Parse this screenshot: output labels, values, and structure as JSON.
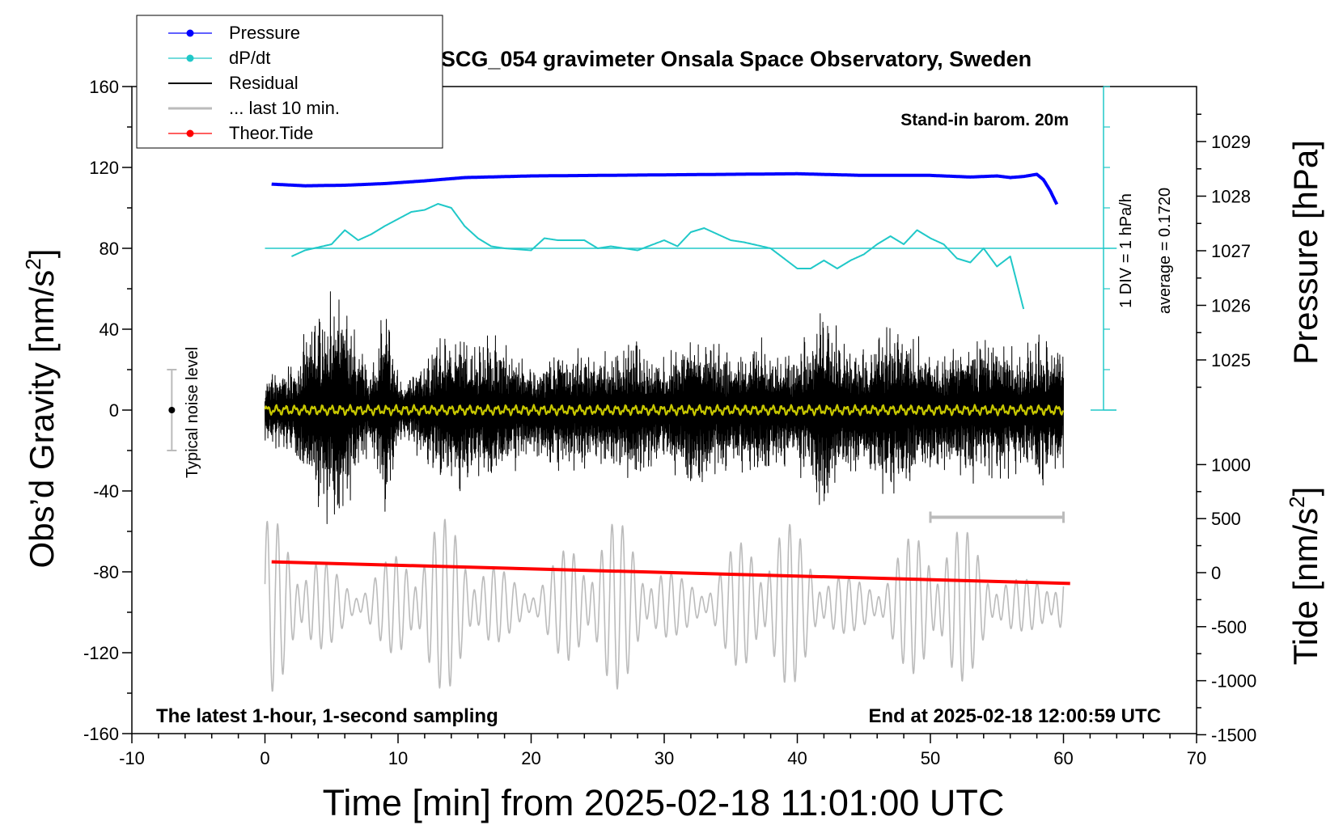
{
  "chart_data": {
    "type": "line",
    "title": "SCG_054 gravimeter Onsala Space Observatory, Sweden",
    "xlabel": "Time [min] from 2025-02-18 11:01:00 UTC",
    "xlim": [
      -10,
      70
    ],
    "xticks": [
      "-10",
      "0",
      "10",
      "20",
      "30",
      "40",
      "50",
      "60",
      "70"
    ],
    "ylabel_left": "Obs’d Gravity [nm/s",
    "ylabel_left_sup": "2",
    "ylabel_left_end": "]",
    "ylim_left": [
      -160,
      160
    ],
    "yticks_left": [
      "160",
      "120",
      "80",
      "40",
      "0",
      "-40",
      "-80",
      "-120",
      "-160"
    ],
    "ylabel_pressure": "Pressure [hPa]",
    "yticks_pressure": [
      "1029",
      "1028",
      "1027",
      "1026",
      "1025"
    ],
    "ylabel_tide": "Tide [nm/s",
    "ylabel_tide_sup": "2",
    "ylabel_tide_end": "]",
    "yticks_tide": [
      "1000",
      "500",
      "0",
      "-500",
      "-1000",
      "-1500"
    ],
    "annotations": {
      "top_right": "Stand-in barom. 20m",
      "bottom_left": "The latest 1-hour, 1-second sampling",
      "bottom_right": "End at 2025-02-18 12:00:59 UTC",
      "noise_label": "Typical noise level",
      "div_label": "1 DIV = 1 hPa/h",
      "average_label": "average = 0.1720"
    },
    "legend": [
      {
        "label": "Pressure",
        "color": "#0000ff",
        "marker": true
      },
      {
        "label": "dP/dt",
        "color": "#20c8c8",
        "marker": true
      },
      {
        "label": "Residual",
        "color": "#000000",
        "marker": false
      },
      {
        "label": "... last 10 min.",
        "color": "#bbbbbb",
        "marker": false
      },
      {
        "label": "Theor.Tide",
        "color": "#ff0000",
        "marker": true
      }
    ],
    "series": [
      {
        "name": "Pressure",
        "axis": "pressure_hpa",
        "color": "#0000ff",
        "x": [
          0.5,
          3,
          6,
          9,
          12,
          15,
          20,
          25,
          30,
          35,
          40,
          45,
          50,
          53,
          55,
          56,
          57,
          58,
          58.5,
          59,
          59.5
        ],
        "values": [
          1028.22,
          1028.19,
          1028.2,
          1028.23,
          1028.28,
          1028.34,
          1028.37,
          1028.38,
          1028.39,
          1028.4,
          1028.41,
          1028.38,
          1028.38,
          1028.35,
          1028.37,
          1028.34,
          1028.36,
          1028.4,
          1028.3,
          1028.1,
          1027.85
        ]
      },
      {
        "name": "dP/dt",
        "axis": "gravity_scale",
        "color": "#20c8c8",
        "x": [
          2,
          3,
          5,
          6,
          7,
          8,
          9,
          11,
          12,
          13,
          14,
          15,
          16,
          17,
          18,
          20,
          21,
          22,
          24,
          25,
          26,
          28,
          30,
          31,
          32,
          33,
          35,
          36,
          38,
          40,
          41,
          42,
          43,
          44,
          45,
          46,
          47,
          48,
          49,
          50,
          51,
          52,
          53,
          54,
          55,
          56,
          57
        ],
        "values": [
          76,
          79,
          82,
          89,
          84,
          87,
          91,
          98,
          99,
          102,
          100,
          91,
          85,
          81,
          80,
          79,
          85,
          84,
          84,
          80,
          81,
          79,
          84,
          81,
          88,
          90,
          84,
          83,
          80,
          70,
          70,
          74,
          70,
          74,
          77,
          82,
          86,
          82,
          89,
          85,
          82,
          75,
          73,
          80,
          71,
          76,
          50
        ]
      },
      {
        "name": "dP/dt average",
        "axis": "gravity_scale",
        "color": "#20c8c8",
        "x": [
          0,
          64
        ],
        "values": [
          80,
          80
        ]
      },
      {
        "name": "Residual",
        "axis": "gravity",
        "color": "#000000",
        "x_range": [
          0,
          60
        ],
        "amplitude_range": [
          -60,
          65
        ],
        "envelope_x": [
          0,
          2,
          3,
          4,
          5,
          6,
          7,
          8,
          9,
          10,
          11,
          12,
          14,
          16,
          17,
          20,
          22,
          25,
          28,
          30,
          32,
          33,
          35,
          37,
          39,
          41,
          42,
          43,
          45,
          47,
          49,
          51,
          53,
          55,
          57,
          58,
          60
        ],
        "envelope": [
          18,
          25,
          40,
          55,
          62,
          58,
          35,
          22,
          60,
          20,
          18,
          30,
          45,
          38,
          45,
          25,
          35,
          30,
          40,
          28,
          45,
          40,
          32,
          38,
          30,
          40,
          60,
          42,
          35,
          45,
          40,
          35,
          38,
          40,
          32,
          40,
          38
        ]
      },
      {
        "name": "Residual smoothed",
        "axis": "gravity",
        "color": "#c8c800",
        "x_range": [
          0,
          60
        ],
        "values": [
          0,
          0
        ]
      },
      {
        "name": "... last 10 min.",
        "axis": "tide",
        "color": "#bbbbbb",
        "x_range": [
          0,
          60
        ],
        "amplitude_range": [
          -1100,
          500
        ]
      },
      {
        "name": "Theor.Tide",
        "axis": "tide",
        "color": "#ff0000",
        "x": [
          0.5,
          60.5
        ],
        "values": [
          100,
          -100
        ]
      }
    ],
    "last10_marker": {
      "x": [
        50,
        60
      ],
      "y": -53
    },
    "noise_bar": {
      "x": -7,
      "y": [
        -20,
        20
      ]
    }
  }
}
